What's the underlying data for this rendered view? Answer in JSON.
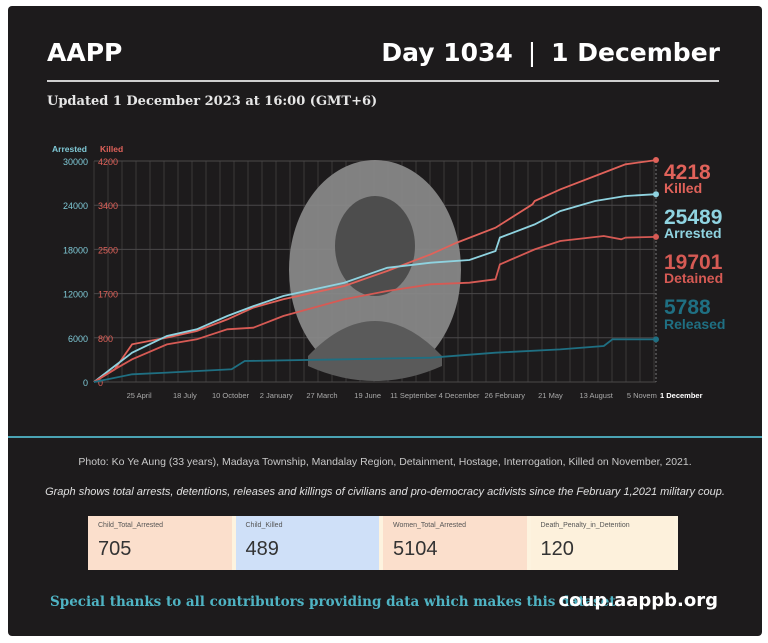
{
  "header": {
    "brand": "AAPP",
    "day": "Day 1034 ❘ 1 December",
    "updated": "Updated 1 December 2023 at 16:00 (GMT+6)"
  },
  "chart_data": {
    "type": "line",
    "x_range": [
      "2021-02-01",
      "2023-12-01"
    ],
    "x_tick_labels": [
      "25 April",
      "18 July",
      "10 October",
      "2 January",
      "27 March",
      "19 June",
      "11 September",
      "4 December",
      "26 February",
      "21 May",
      "13 August",
      "5 Novem",
      "1 December"
    ],
    "x_tick_dates": [
      "2021-04-25",
      "2021-07-18",
      "2021-10-10",
      "2022-01-02",
      "2022-03-27",
      "2022-06-19",
      "2022-09-11",
      "2022-12-04",
      "2023-02-26",
      "2023-05-21",
      "2023-08-13",
      "2023-11-05",
      "2023-12-01"
    ],
    "left_axis": {
      "label": "Arrested",
      "ticks": [
        0,
        6000,
        12000,
        18000,
        24000,
        30000
      ],
      "range": [
        0,
        30000
      ],
      "color": "#7fc9d6"
    },
    "second_axis": {
      "label": "Killed",
      "ticks": [
        "0",
        "800",
        "1700",
        "2500",
        "3400",
        "4200"
      ],
      "range": [
        0,
        4200
      ],
      "color": "#e0625a"
    },
    "grid": true,
    "series": [
      {
        "name": "Killed",
        "axis": "second",
        "color": "#e0625a",
        "final_label": "4218",
        "points": [
          [
            "2021-02-01",
            0
          ],
          [
            "2021-03-11",
            240
          ],
          [
            "2021-04-12",
            716
          ],
          [
            "2021-06-15",
            843
          ],
          [
            "2021-08-09",
            970
          ],
          [
            "2021-10-04",
            1190
          ],
          [
            "2021-11-21",
            1413
          ],
          [
            "2022-01-15",
            1571
          ],
          [
            "2022-05-07",
            1824
          ],
          [
            "2022-07-25",
            2110
          ],
          [
            "2022-10-13",
            2426
          ],
          [
            "2022-11-30",
            2650
          ],
          [
            "2023-02-09",
            2933
          ],
          [
            "2023-04-18",
            3377
          ],
          [
            "2023-04-22",
            3440
          ],
          [
            "2023-06-08",
            3660
          ],
          [
            "2023-08-27",
            3980
          ],
          [
            "2023-10-06",
            4137
          ],
          [
            "2023-12-01",
            4218
          ]
        ]
      },
      {
        "name": "Arrested",
        "axis": "left",
        "color": "#8fd3e0",
        "final_label": "25489",
        "points": [
          [
            "2021-02-01",
            0
          ],
          [
            "2021-03-11",
            2170
          ],
          [
            "2021-04-12",
            3980
          ],
          [
            "2021-06-15",
            6240
          ],
          [
            "2021-08-09",
            7150
          ],
          [
            "2021-10-04",
            8960
          ],
          [
            "2021-11-21",
            10300
          ],
          [
            "2022-01-15",
            11670
          ],
          [
            "2022-05-07",
            13480
          ],
          [
            "2022-07-25",
            15500
          ],
          [
            "2022-10-13",
            16200
          ],
          [
            "2022-12-23",
            16560
          ],
          [
            "2023-02-09",
            17780
          ],
          [
            "2023-02-17",
            19600
          ],
          [
            "2023-04-22",
            21400
          ],
          [
            "2023-06-08",
            23200
          ],
          [
            "2023-08-11",
            24570
          ],
          [
            "2023-10-06",
            25250
          ],
          [
            "2023-12-01",
            25489
          ]
        ]
      },
      {
        "name": "Detained",
        "axis": "left",
        "color": "#d65a54",
        "final_label": "19701",
        "points": [
          [
            "2021-02-01",
            0
          ],
          [
            "2021-03-11",
            1720
          ],
          [
            "2021-04-12",
            3080
          ],
          [
            "2021-06-15",
            5110
          ],
          [
            "2021-08-09",
            5790
          ],
          [
            "2021-10-04",
            7150
          ],
          [
            "2021-11-21",
            7375
          ],
          [
            "2022-01-15",
            8960
          ],
          [
            "2022-05-07",
            11220
          ],
          [
            "2022-07-25",
            12350
          ],
          [
            "2022-10-13",
            13260
          ],
          [
            "2022-12-23",
            13480
          ],
          [
            "2023-02-09",
            13940
          ],
          [
            "2023-02-17",
            15970
          ],
          [
            "2023-04-22",
            18000
          ],
          [
            "2023-06-08",
            19140
          ],
          [
            "2023-08-27",
            19820
          ],
          [
            "2023-09-28",
            19370
          ],
          [
            "2023-10-06",
            19600
          ],
          [
            "2023-12-01",
            19701
          ]
        ]
      },
      {
        "name": "Released",
        "axis": "left",
        "color": "#1f6f82",
        "final_label": "5788",
        "points": [
          [
            "2021-02-01",
            0
          ],
          [
            "2021-04-12",
            1040
          ],
          [
            "2021-06-15",
            1270
          ],
          [
            "2021-10-12",
            1720
          ],
          [
            "2021-11-05",
            2850
          ],
          [
            "2022-05-07",
            3080
          ],
          [
            "2022-10-13",
            3300
          ],
          [
            "2023-02-09",
            3980
          ],
          [
            "2023-06-08",
            4430
          ],
          [
            "2023-08-27",
            4890
          ],
          [
            "2023-09-12",
            5790
          ],
          [
            "2023-12-01",
            5788
          ]
        ]
      }
    ]
  },
  "caption": "Photo: Ko Ye Aung (33 years), Madaya Township, Mandalay Region, Detainment, Hostage, Interrogation, Killed on November, 2021.",
  "description": "Graph shows total arrests, detentions, releases and killings of civilians and pro-democracy activists since the February 1,2021 military coup.",
  "cards": [
    {
      "label": "Child_Total_Arrested",
      "value": "705",
      "color": "#fbdfcc"
    },
    {
      "label": "Child_Killed",
      "value": "489",
      "color": "#cfe0f8"
    },
    {
      "label": "Women_Total_Arrested",
      "value": "5104",
      "color": "#fbdfcc"
    },
    {
      "label": "Death_Penalty_in_Detention",
      "value": "120",
      "color": "#fdf1dc"
    }
  ],
  "footer": {
    "thanks": "Special thanks to all contributors providing data which makes this dataset.",
    "site": "coup.aappb.org"
  }
}
